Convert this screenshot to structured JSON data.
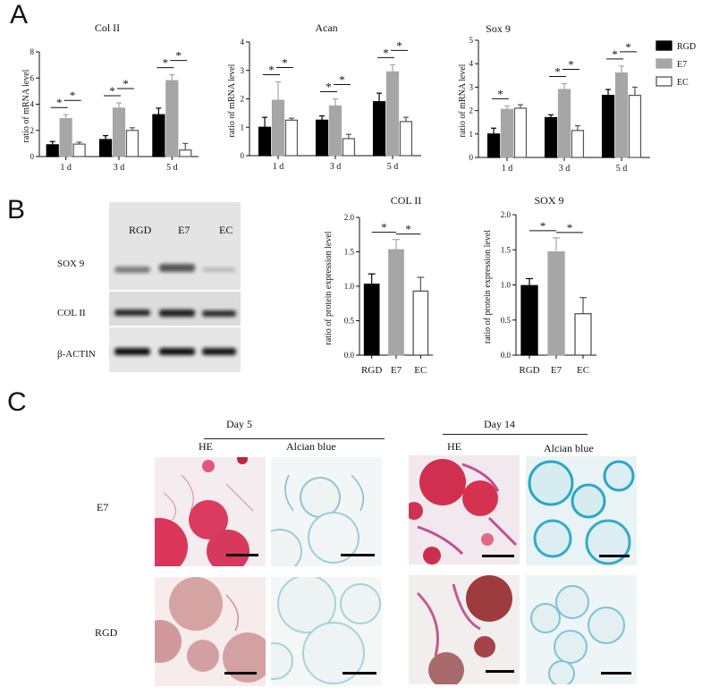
{
  "panels": {
    "a": "A",
    "b": "B",
    "c": "C"
  },
  "legend": {
    "items": [
      {
        "name": "RGD",
        "fill": "#000000",
        "stroke": "#000000"
      },
      {
        "name": "E7",
        "fill": "#a6a6a6",
        "stroke": "#a6a6a6"
      },
      {
        "name": "EC",
        "fill": "#ffffff",
        "stroke": "#555555"
      }
    ]
  },
  "chart_data": [
    {
      "type": "bar",
      "title": "Col II",
      "ylabel": "ratio of mRNA level",
      "categories": [
        "1 d",
        "3 d",
        "5 d"
      ],
      "ylim": [
        0,
        8
      ],
      "yticks": [
        0,
        2,
        4,
        6,
        8
      ],
      "series": [
        {
          "name": "RGD",
          "values": [
            0.9,
            1.3,
            3.2
          ],
          "errors": [
            0.25,
            0.3,
            0.5
          ]
        },
        {
          "name": "E7",
          "values": [
            2.9,
            3.7,
            5.8
          ],
          "errors": [
            0.3,
            0.4,
            0.45
          ]
        },
        {
          "name": "EC",
          "values": [
            0.95,
            2.0,
            0.5
          ],
          "errors": [
            0.15,
            0.2,
            0.5
          ]
        }
      ],
      "significance": [
        [
          0,
          0,
          1
        ],
        [
          0,
          1,
          2
        ],
        [
          1,
          0,
          1
        ],
        [
          1,
          1,
          2
        ],
        [
          2,
          0,
          1
        ],
        [
          2,
          1,
          2
        ]
      ],
      "star": "*"
    },
    {
      "type": "bar",
      "title": "Acan",
      "ylabel": "ratio of mRNA level",
      "categories": [
        "1 d",
        "3 d",
        "5 d"
      ],
      "ylim": [
        0,
        4
      ],
      "yticks": [
        0,
        1,
        2,
        3,
        4
      ],
      "series": [
        {
          "name": "RGD",
          "values": [
            1.0,
            1.25,
            1.9
          ],
          "errors": [
            0.35,
            0.15,
            0.3
          ]
        },
        {
          "name": "E7",
          "values": [
            1.95,
            1.75,
            2.95
          ],
          "errors": [
            0.65,
            0.25,
            0.25
          ]
        },
        {
          "name": "EC",
          "values": [
            1.25,
            0.6,
            1.2
          ],
          "errors": [
            0.07,
            0.15,
            0.15
          ]
        }
      ],
      "significance": [
        [
          0,
          0,
          1
        ],
        [
          0,
          1,
          2
        ],
        [
          1,
          0,
          1
        ],
        [
          1,
          1,
          2
        ],
        [
          2,
          0,
          1
        ],
        [
          2,
          1,
          2
        ]
      ],
      "star": "*"
    },
    {
      "type": "bar",
      "title": "Sox 9",
      "ylabel": "ratio of mRNA level",
      "categories": [
        "1 d",
        "3 d",
        "5 d"
      ],
      "ylim": [
        0,
        5
      ],
      "yticks": [
        0,
        1,
        2,
        3,
        4,
        5
      ],
      "series": [
        {
          "name": "RGD",
          "values": [
            1.0,
            1.7,
            2.65
          ],
          "errors": [
            0.25,
            0.12,
            0.25
          ]
        },
        {
          "name": "E7",
          "values": [
            2.05,
            2.9,
            3.6
          ],
          "errors": [
            0.15,
            0.25,
            0.3
          ]
        },
        {
          "name": "EC",
          "values": [
            2.1,
            1.15,
            2.65
          ],
          "errors": [
            0.15,
            0.2,
            0.35
          ]
        }
      ],
      "significance": [
        [
          0,
          0,
          1
        ],
        [
          1,
          0,
          1
        ],
        [
          1,
          1,
          2
        ],
        [
          2,
          0,
          1
        ],
        [
          2,
          1,
          2
        ]
      ],
      "star": "*"
    },
    {
      "type": "bar",
      "title": "COL II",
      "ylabel": "ratio of protein expression level",
      "categories": [
        "RGD",
        "E7",
        "EC"
      ],
      "ylim": [
        0,
        2.0
      ],
      "yticks": [
        0.0,
        0.5,
        1.0,
        1.5,
        2.0
      ],
      "values": [
        1.03,
        1.53,
        0.93
      ],
      "errors": [
        0.15,
        0.15,
        0.2
      ],
      "significance": [
        [
          0,
          1
        ],
        [
          1,
          2
        ]
      ],
      "star": "*"
    },
    {
      "type": "bar",
      "title": "SOX 9",
      "ylabel": "ratio of protein expression level",
      "categories": [
        "RGD",
        "E7",
        "EC"
      ],
      "ylim": [
        0,
        2.0
      ],
      "yticks": [
        0.0,
        0.5,
        1.0,
        1.5,
        2.0
      ],
      "values": [
        0.99,
        1.47,
        0.59
      ],
      "errors": [
        0.1,
        0.2,
        0.23
      ],
      "significance": [
        [
          0,
          1
        ],
        [
          1,
          2
        ]
      ],
      "star": "*"
    }
  ],
  "blot": {
    "lanes": [
      "RGD",
      "E7",
      "EC"
    ],
    "rows": [
      "SOX 9",
      "COL II",
      "β-ACTIN"
    ]
  },
  "micrographs": {
    "groups": [
      "Day 5",
      "Day 14"
    ],
    "columns": [
      "HE",
      "Alcian blue",
      "HE",
      "Alcian blue"
    ],
    "rows": [
      "E7",
      "RGD"
    ]
  }
}
